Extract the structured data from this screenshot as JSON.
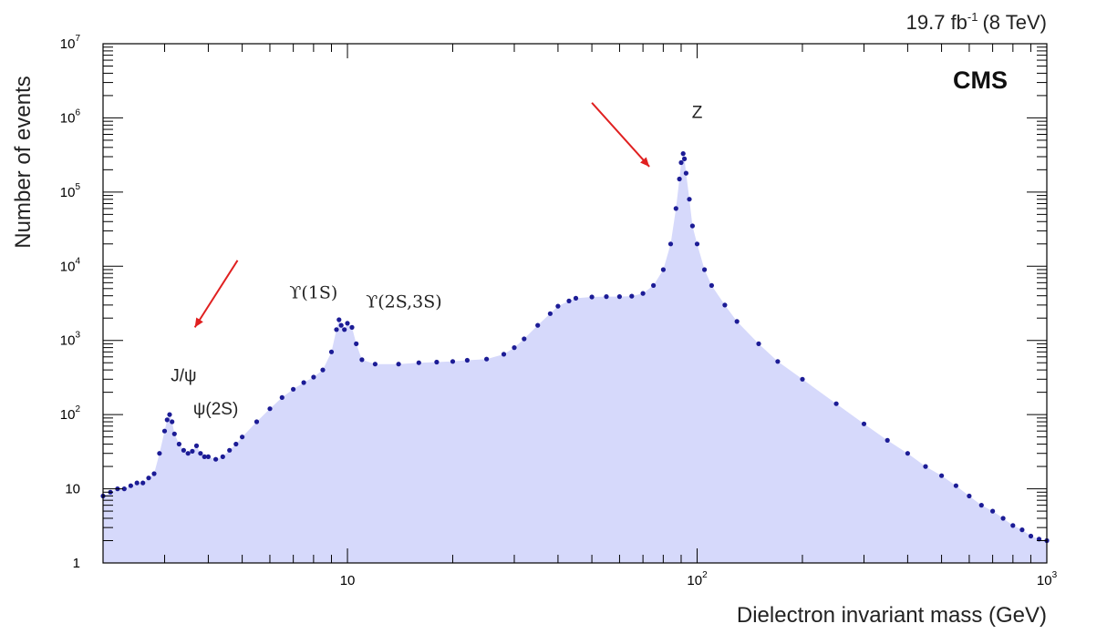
{
  "chart_data": {
    "type": "scatter",
    "experiment": "CMS",
    "lumi_main": "19.7 fb",
    "lumi_sup": "-1",
    "lumi_energy": "(8 TeV)",
    "xlabel": "Dielectron invariant mass (GeV)",
    "ylabel": "Number of events",
    "x_scale": "log",
    "y_scale": "log",
    "xlim": [
      2,
      1000
    ],
    "ylim": [
      1,
      10000000
    ],
    "x_ticks": [
      {
        "value": 10,
        "base": "10",
        "exp": ""
      },
      {
        "value": 100,
        "base": "10",
        "exp": "2"
      },
      {
        "value": 1000,
        "base": "10",
        "exp": "3"
      }
    ],
    "y_ticks": [
      {
        "value": 1,
        "base": "1",
        "exp": ""
      },
      {
        "value": 10,
        "base": "10",
        "exp": ""
      },
      {
        "value": 100,
        "base": "10",
        "exp": "2"
      },
      {
        "value": 1000,
        "base": "10",
        "exp": "3"
      },
      {
        "value": 10000,
        "base": "10",
        "exp": "4"
      },
      {
        "value": 100000,
        "base": "10",
        "exp": "5"
      },
      {
        "value": 1000000,
        "base": "10",
        "exp": "6"
      },
      {
        "value": 10000000,
        "base": "10",
        "exp": "7"
      }
    ],
    "series": [
      {
        "color": "#1c1c96",
        "fill": "#d6d9fb",
        "points": [
          [
            2.0,
            8
          ],
          [
            2.1,
            9
          ],
          [
            2.2,
            10
          ],
          [
            2.3,
            10
          ],
          [
            2.4,
            11
          ],
          [
            2.5,
            12
          ],
          [
            2.6,
            12
          ],
          [
            2.7,
            14
          ],
          [
            2.8,
            16
          ],
          [
            2.9,
            30
          ],
          [
            3.0,
            60
          ],
          [
            3.05,
            85
          ],
          [
            3.1,
            100
          ],
          [
            3.15,
            80
          ],
          [
            3.2,
            55
          ],
          [
            3.3,
            40
          ],
          [
            3.4,
            33
          ],
          [
            3.5,
            30
          ],
          [
            3.6,
            32
          ],
          [
            3.7,
            38
          ],
          [
            3.8,
            30
          ],
          [
            3.9,
            27
          ],
          [
            4.0,
            27
          ],
          [
            4.2,
            25
          ],
          [
            4.4,
            27
          ],
          [
            4.6,
            33
          ],
          [
            4.8,
            40
          ],
          [
            5.0,
            50
          ],
          [
            5.5,
            80
          ],
          [
            6.0,
            120
          ],
          [
            6.5,
            170
          ],
          [
            7.0,
            220
          ],
          [
            7.5,
            270
          ],
          [
            8.0,
            320
          ],
          [
            8.5,
            400
          ],
          [
            9.0,
            700
          ],
          [
            9.3,
            1400
          ],
          [
            9.46,
            1900
          ],
          [
            9.6,
            1600
          ],
          [
            9.8,
            1400
          ],
          [
            10.0,
            1700
          ],
          [
            10.3,
            1500
          ],
          [
            10.6,
            900
          ],
          [
            11.0,
            550
          ],
          [
            12,
            480
          ],
          [
            14,
            480
          ],
          [
            16,
            500
          ],
          [
            18,
            510
          ],
          [
            20,
            520
          ],
          [
            22,
            540
          ],
          [
            25,
            560
          ],
          [
            28,
            650
          ],
          [
            30,
            800
          ],
          [
            32,
            1050
          ],
          [
            35,
            1600
          ],
          [
            38,
            2300
          ],
          [
            40,
            2900
          ],
          [
            43,
            3400
          ],
          [
            45,
            3700
          ],
          [
            50,
            3850
          ],
          [
            55,
            3900
          ],
          [
            60,
            3900
          ],
          [
            65,
            3950
          ],
          [
            70,
            4300
          ],
          [
            75,
            5500
          ],
          [
            80,
            9000
          ],
          [
            84,
            20000
          ],
          [
            87,
            60000
          ],
          [
            89,
            150000
          ],
          [
            90,
            250000
          ],
          [
            91.2,
            330000
          ],
          [
            92,
            280000
          ],
          [
            93,
            180000
          ],
          [
            95,
            80000
          ],
          [
            97,
            35000
          ],
          [
            100,
            20000
          ],
          [
            105,
            9000
          ],
          [
            110,
            5500
          ],
          [
            120,
            3000
          ],
          [
            130,
            1800
          ],
          [
            150,
            900
          ],
          [
            170,
            520
          ],
          [
            200,
            300
          ],
          [
            250,
            140
          ],
          [
            300,
            75
          ],
          [
            350,
            45
          ],
          [
            400,
            30
          ],
          [
            450,
            20
          ],
          [
            500,
            15
          ],
          [
            550,
            11
          ],
          [
            600,
            8
          ],
          [
            650,
            6
          ],
          [
            700,
            5
          ],
          [
            750,
            4
          ],
          [
            800,
            3.2
          ],
          [
            850,
            2.8
          ],
          [
            900,
            2.3
          ],
          [
            950,
            2.1
          ],
          [
            1000,
            2
          ]
        ]
      }
    ],
    "annotations": [
      {
        "text": "J/ψ",
        "x": 3.4,
        "y": 280,
        "style": "sans"
      },
      {
        "text": "ψ(2S)",
        "x": 4.2,
        "y": 100,
        "style": "sans"
      },
      {
        "text": "ϒ(1S)",
        "x": 8.0,
        "y": 3700,
        "style": "serif"
      },
      {
        "text": "ϒ(2S,3S)",
        "x": 14.5,
        "y": 2800,
        "style": "serif"
      },
      {
        "text": "Z",
        "x": 100,
        "y": 1000000,
        "style": "sans"
      }
    ],
    "arrows": [
      {
        "from": [
          4.85,
          12000
        ],
        "to": [
          3.66,
          1500
        ],
        "color": "#e02020"
      },
      {
        "from": [
          50,
          1600000
        ],
        "to": [
          73,
          220000
        ],
        "color": "#e02020"
      }
    ]
  }
}
